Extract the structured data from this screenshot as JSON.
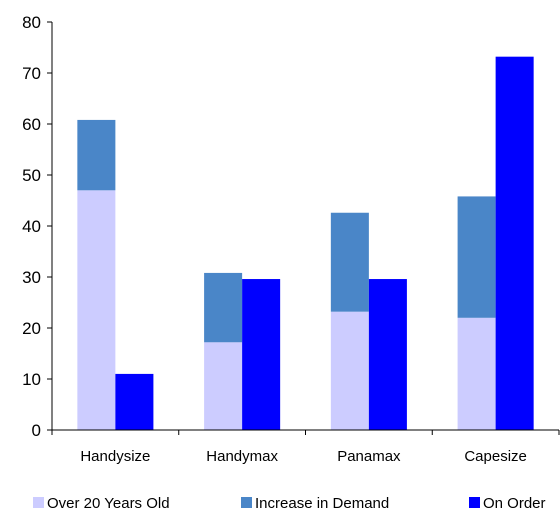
{
  "chart_data": {
    "type": "bar",
    "stacked": true,
    "categories": [
      "Handysize",
      "Handymax",
      "Panamax",
      "Capesize"
    ],
    "series": [
      {
        "name": "Over 20 Years Old",
        "stack": "a",
        "color": "#ccccff",
        "values": [
          47,
          17.2,
          23.2,
          22
        ]
      },
      {
        "name": "Increase in Demand",
        "stack": "a",
        "color": "#4a86c8",
        "values": [
          13.8,
          13.6,
          19.4,
          23.8
        ]
      },
      {
        "name": "On Order",
        "stack": "b",
        "color": "#0000ff",
        "values": [
          11,
          29.6,
          29.6,
          73.2
        ]
      }
    ],
    "ylim": [
      0,
      80
    ],
    "yticks": [
      "0",
      "10",
      "20",
      "30",
      "40",
      "50",
      "60",
      "70",
      "80"
    ],
    "title": "",
    "xlabel": "",
    "ylabel": "",
    "grid": false,
    "legend_position": "bottom"
  }
}
